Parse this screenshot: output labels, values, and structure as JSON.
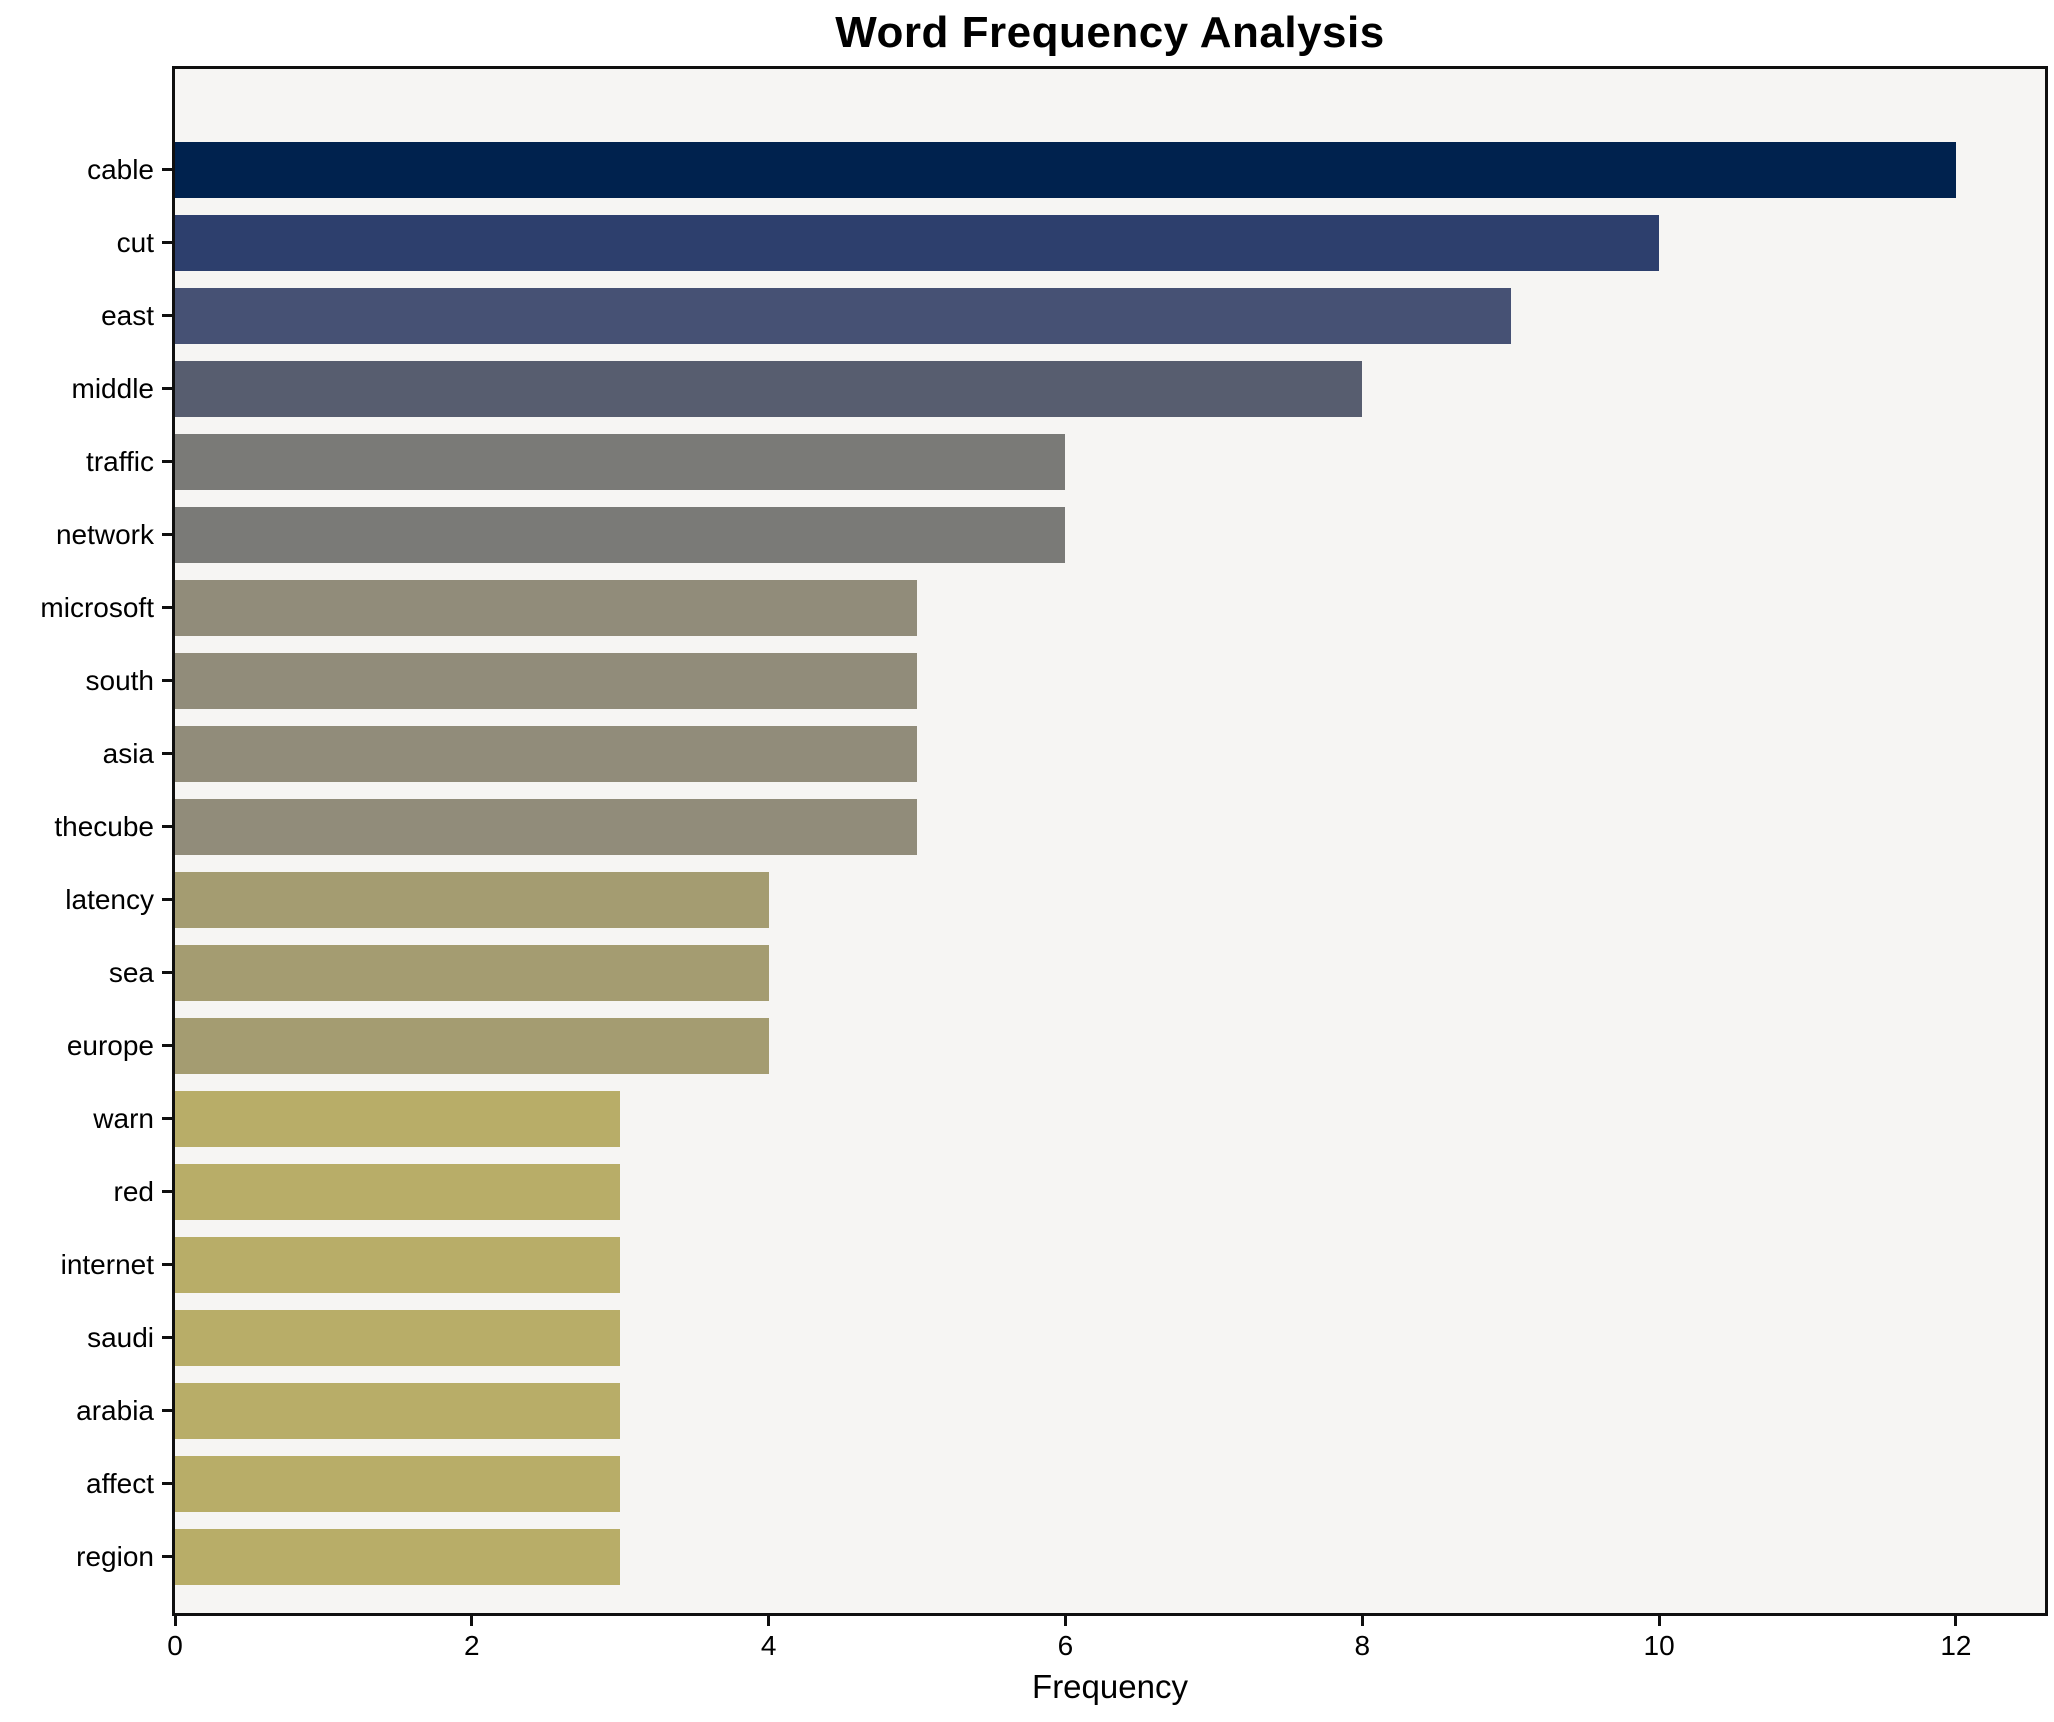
{
  "chart_data": {
    "type": "bar",
    "orientation": "horizontal",
    "title": "Word Frequency Analysis",
    "xlabel": "Frequency",
    "ylabel": "",
    "categories": [
      "cable",
      "cut",
      "east",
      "middle",
      "traffic",
      "network",
      "microsoft",
      "south",
      "asia",
      "thecube",
      "latency",
      "sea",
      "europe",
      "warn",
      "red",
      "internet",
      "saudi",
      "arabia",
      "affect",
      "region"
    ],
    "values": [
      12,
      10,
      9,
      8,
      6,
      6,
      5,
      5,
      5,
      5,
      4,
      4,
      4,
      3,
      3,
      3,
      3,
      3,
      3,
      3
    ],
    "bar_colors": [
      "#00224e",
      "#2d3f6d",
      "#465174",
      "#575d6f",
      "#7a7a77",
      "#7a7a77",
      "#918c7a",
      "#918c7a",
      "#918c7a",
      "#918c7a",
      "#a49c71",
      "#a49c71",
      "#a49c71",
      "#b8ad68",
      "#b8ad68",
      "#b8ad68",
      "#b8ad68",
      "#b8ad68",
      "#b8ad68",
      "#b8ad68"
    ],
    "xticks": [
      0,
      2,
      4,
      6,
      8,
      10,
      12
    ],
    "xlim": [
      0,
      12.6
    ],
    "grid": false,
    "legend": null,
    "plot_bg": "#f6f5f3",
    "figure_bg": "#ffffff",
    "spine_color": "#0f0f0f",
    "text_color": "#000000"
  }
}
